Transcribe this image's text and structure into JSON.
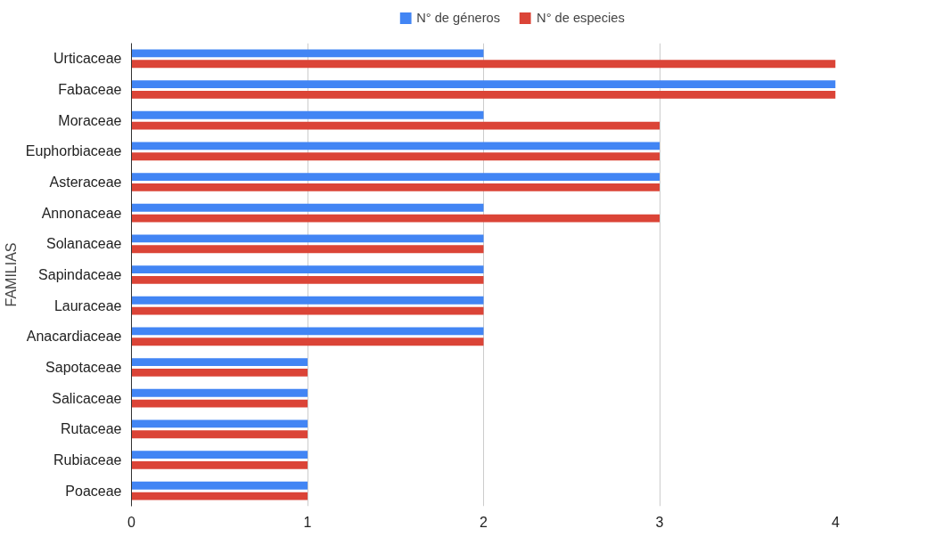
{
  "chart_data": {
    "type": "bar",
    "orientation": "horizontal",
    "ylabel": "FAMILIAS",
    "categories": [
      "Urticaceae",
      "Fabaceae",
      "Moraceae",
      "Euphorbiaceae",
      "Asteraceae",
      "Annonaceae",
      "Solanaceae",
      "Sapindaceae",
      "Lauraceae",
      "Anacardiaceae",
      "Sapotaceae",
      "Salicaceae",
      "Rutaceae",
      "Rubiaceae",
      "Poaceae"
    ],
    "series": [
      {
        "name": "N° de géneros",
        "color": "#4285f4",
        "values": [
          2,
          4,
          2,
          3,
          3,
          2,
          2,
          2,
          2,
          2,
          1,
          1,
          1,
          1,
          1
        ]
      },
      {
        "name": "N° de especies",
        "color": "#db4437",
        "values": [
          4,
          4,
          3,
          3,
          3,
          3,
          2,
          2,
          2,
          2,
          1,
          1,
          1,
          1,
          1
        ]
      }
    ],
    "xlim": [
      0,
      4
    ],
    "xticks": [
      0,
      1,
      2,
      3,
      4
    ],
    "grid": "x",
    "legend": "top"
  }
}
